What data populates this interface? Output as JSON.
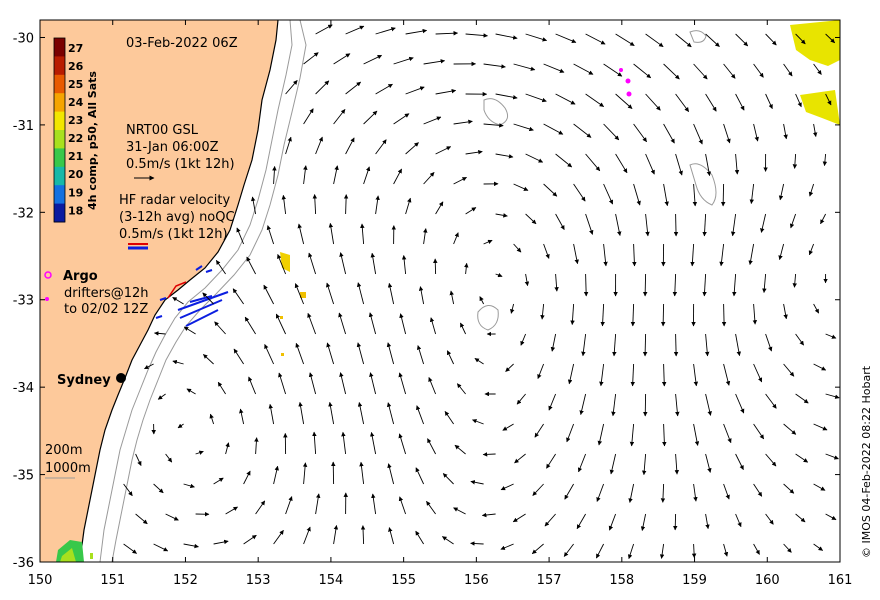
{
  "map": {
    "date_title": "03-Feb-2022 06Z",
    "credit": "© IMOS 04-Feb-2022 08:22 Hobart",
    "x_ticks": [
      "150",
      "151",
      "152",
      "153",
      "154",
      "155",
      "156",
      "157",
      "158",
      "159",
      "160",
      "161"
    ],
    "y_ticks": [
      "-30",
      "-31",
      "-32",
      "-33",
      "-34",
      "-35",
      "-36"
    ],
    "lon_range": [
      150,
      161
    ],
    "lat_range": [
      -36,
      -29.8
    ]
  },
  "colorbar": {
    "label": "4h comp, p50, All Sats",
    "ticks": [
      "27",
      "26",
      "25",
      "24",
      "23",
      "22",
      "21",
      "20",
      "19",
      "18"
    ],
    "colors": [
      "#7a0000",
      "#b81c00",
      "#e85a00",
      "#f5a400",
      "#f2e600",
      "#a8e01e",
      "#38c84a",
      "#18b8a8",
      "#1470e0",
      "#0a1aa0"
    ]
  },
  "legend": {
    "gsl": {
      "line1": "NRT00 GSL",
      "line2": "31-Jan 06:00Z",
      "line3": "0.5m/s (1kt 12h)"
    },
    "radar": {
      "line1": "HF radar velocity",
      "line2": "(3-12h avg) noQC",
      "line3": "0.5m/s (1kt 12h)"
    },
    "argo": {
      "label": "Argo"
    },
    "drifters": {
      "line1": "drifters@12h",
      "line2": "to 02/02 12Z"
    },
    "depth": {
      "line1": "200m",
      "line2": "1000m"
    }
  },
  "places": {
    "sydney": "Sydney"
  },
  "colors": {
    "land": "#fdc99b",
    "sea": "#ffffff",
    "radar": "#0b1ee0",
    "argo": "#ff00ff",
    "warm": "#e8e000"
  }
}
